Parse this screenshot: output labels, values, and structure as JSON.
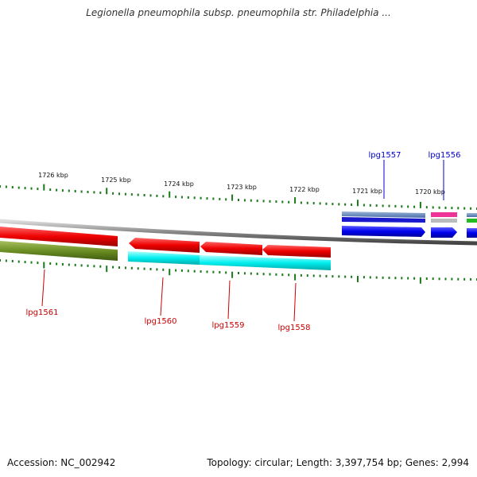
{
  "title": "Legionella pneumophila subsp. pneumophila str. Philadelphia ...",
  "footer": {
    "accession": "Accession: NC_002942",
    "summary": "Topology: circular; Length: 3,397,754 bp; Genes: 2,994"
  },
  "scale": {
    "tick_labels": [
      "1726 kbp",
      "1725 kbp",
      "1724 kbp",
      "1723 kbp",
      "1722 kbp",
      "1721 kbp",
      "1720 kbp"
    ]
  },
  "genes": {
    "forward": [
      {
        "name": "lpg1557",
        "label_color": "#0000cc"
      },
      {
        "name": "lpg1556",
        "label_color": "#0000cc"
      }
    ],
    "reverse": [
      {
        "name": "lpg1561",
        "label_color": "#cc0000"
      },
      {
        "name": "lpg1560",
        "label_color": "#cc0000"
      },
      {
        "name": "lpg1559",
        "label_color": "#cc0000"
      },
      {
        "name": "lpg1558",
        "label_color": "#cc0000"
      }
    ]
  },
  "colors": {
    "forward_gene": "#0000ee",
    "reverse_gene": "#ee0000",
    "tick": "#1a7a1a",
    "backbone": "#888888"
  }
}
